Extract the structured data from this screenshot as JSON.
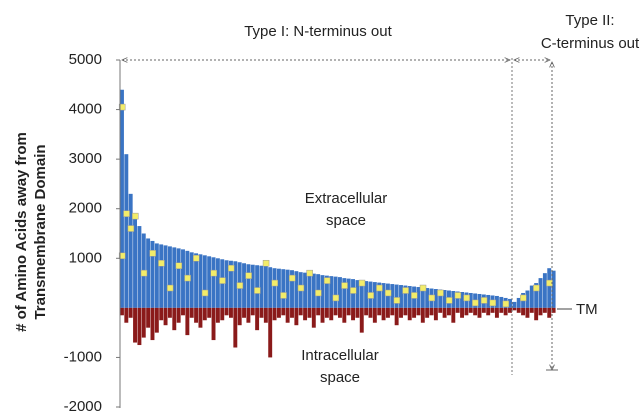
{
  "chart_data": {
    "type": "bar",
    "ylabel": [
      "# of Amino Acids away from",
      "Transmembrane Domain"
    ],
    "ylim": [
      -2000,
      5000
    ],
    "yticks": [
      -2000,
      -1000,
      1000,
      2000,
      3000,
      4000,
      5000
    ],
    "annotations": {
      "type_one": "Type I: N-terminus out",
      "type_two": [
        "Type II:",
        "C-terminus out"
      ],
      "extracellular": [
        "Extracellular",
        "space"
      ],
      "intracellular": [
        "Intracellular",
        "space"
      ],
      "tm": "TM"
    },
    "series": [
      {
        "color": "#3a74c4",
        "values": [
          4400,
          3100,
          2300,
          1900,
          1650,
          1500,
          1400,
          1350,
          1300,
          1280,
          1260,
          1240,
          1220,
          1200,
          1180,
          1150,
          1120,
          1100,
          1080,
          1060,
          1040,
          1020,
          1000,
          980,
          960,
          950,
          940,
          920,
          900,
          880,
          870,
          860,
          850,
          840,
          820,
          800,
          790,
          780,
          770,
          760,
          740,
          720,
          710,
          700,
          690,
          680,
          660,
          650,
          640,
          630,
          620,
          600,
          590,
          580,
          560,
          550,
          540,
          530,
          520,
          510,
          500,
          490,
          480,
          470,
          460,
          450,
          440,
          430,
          420,
          410,
          400,
          390,
          380,
          370,
          360,
          350,
          340,
          330,
          320,
          310,
          300,
          290,
          280,
          270,
          260,
          250,
          240,
          220,
          200,
          180,
          120,
          200,
          300,
          350,
          450,
          500,
          600,
          700,
          800,
          750
        ]
      },
      {
        "color": "#8a1a1a",
        "values": [
          -150,
          -300,
          -200,
          -700,
          -750,
          -600,
          -400,
          -650,
          -500,
          -250,
          -350,
          -200,
          -450,
          -300,
          -150,
          -550,
          -200,
          -300,
          -400,
          -250,
          -200,
          -650,
          -300,
          -250,
          -150,
          -200,
          -800,
          -350,
          -200,
          -300,
          -150,
          -450,
          -200,
          -300,
          -1000,
          -250,
          -200,
          -150,
          -300,
          -200,
          -350,
          -150,
          -250,
          -200,
          -400,
          -150,
          -300,
          -200,
          -250,
          -150,
          -200,
          -300,
          -150,
          -250,
          -200,
          -500,
          -150,
          -200,
          -300,
          -150,
          -250,
          -200,
          -150,
          -350,
          -200,
          -150,
          -250,
          -200,
          -150,
          -300,
          -200,
          -150,
          -250,
          -100,
          -200,
          -150,
          -300,
          -100,
          -200,
          -150,
          -100,
          -150,
          -200,
          -100,
          -150,
          -100,
          -200,
          -100,
          -150,
          -100,
          -50,
          -100,
          -150,
          -200,
          -100,
          -250,
          -150,
          -100,
          -200,
          -100
        ]
      },
      {
        "color": "#f2ec6a",
        "type": "scatter",
        "x": [
          0,
          0,
          1,
          2,
          3,
          5,
          7,
          9,
          11,
          13,
          15,
          17,
          19,
          21,
          23,
          25,
          27,
          29,
          31,
          33,
          35,
          37,
          39,
          41,
          43,
          45,
          47,
          49,
          51,
          53,
          55,
          57,
          59,
          61,
          63,
          65,
          67,
          69,
          71,
          73,
          75,
          77,
          79,
          81,
          83,
          85,
          88,
          92,
          95,
          98
        ],
        "values": [
          4050,
          1050,
          1900,
          1600,
          1850,
          700,
          1100,
          900,
          400,
          850,
          600,
          1000,
          300,
          700,
          550,
          800,
          450,
          650,
          350,
          900,
          500,
          250,
          600,
          400,
          700,
          300,
          550,
          200,
          450,
          350,
          500,
          250,
          400,
          300,
          150,
          350,
          250,
          400,
          200,
          300,
          150,
          250,
          200,
          100,
          150,
          100,
          80,
          200,
          400,
          500
        ]
      }
    ]
  }
}
